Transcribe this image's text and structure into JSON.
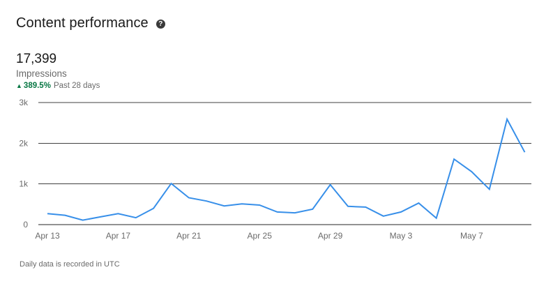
{
  "card": {
    "title": "Content performance",
    "help_icon": "question-circle-icon",
    "metric_value": "17,399",
    "metric_label": "Impressions",
    "change_value": "389.5%",
    "change_period": "Past 28 days",
    "footnote": "Daily data is recorded in UTC"
  },
  "colors": {
    "line": "#378fe9",
    "positive": "#057642",
    "gridline": "#000000"
  },
  "chart_data": {
    "type": "line",
    "xlabel": "",
    "ylabel": "",
    "ylim": [
      0,
      3000
    ],
    "y_ticks": [
      0,
      1000,
      2000,
      3000
    ],
    "y_tick_labels": [
      "0",
      "1k",
      "2k",
      "3k"
    ],
    "x_tick_labels": [
      {
        "label": "Apr 13",
        "date": "Apr 13"
      },
      {
        "label": "Apr 17",
        "date": "Apr 17"
      },
      {
        "label": "Apr 21",
        "date": "Apr 21"
      },
      {
        "label": "Apr 25",
        "date": "Apr 25"
      },
      {
        "label": "Apr 29",
        "date": "Apr 29"
      },
      {
        "label": "May 3",
        "date": "May 3"
      },
      {
        "label": "May 7",
        "date": "May 7"
      }
    ],
    "grid": true,
    "series": [
      {
        "x": [
          "Apr 13",
          "Apr 14",
          "Apr 15",
          "Apr 16",
          "Apr 17",
          "Apr 18",
          "Apr 19",
          "Apr 20",
          "Apr 21",
          "Apr 22",
          "Apr 23",
          "Apr 24",
          "Apr 25",
          "Apr 26",
          "Apr 27",
          "Apr 28",
          "Apr 29",
          "Apr 30",
          "May 1",
          "May 2",
          "May 3",
          "May 4",
          "May 5",
          "May 6",
          "May 7",
          "May 8",
          "May 9",
          "May 10"
        ],
        "values": [
          270,
          230,
          110,
          190,
          270,
          170,
          400,
          1010,
          660,
          580,
          460,
          510,
          480,
          310,
          290,
          380,
          980,
          450,
          430,
          210,
          310,
          530,
          160,
          1610,
          1300,
          870,
          2590,
          1780
        ]
      }
    ]
  }
}
